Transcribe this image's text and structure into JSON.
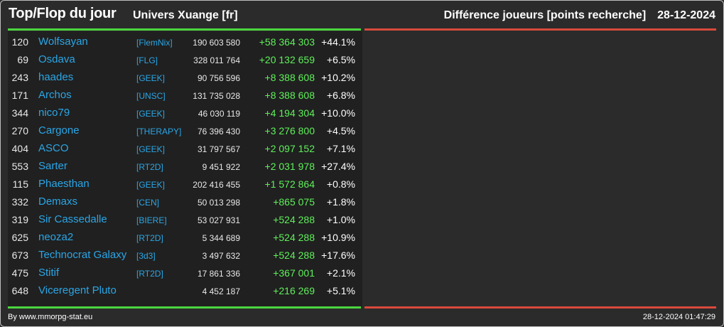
{
  "header": {
    "title": "Top/Flop du jour",
    "univers": "Univers Xuange [fr]",
    "metric": "Différence joueurs [points recherche]",
    "date": "28-12-2024"
  },
  "colors": {
    "top": "#4bd63f",
    "flop": "#d94a3c",
    "link": "#2aa6e6",
    "positive": "#5ff05a"
  },
  "top_rows": [
    {
      "rank": "120",
      "name": "Wolfsayan",
      "tag": "[FlemNix]",
      "points": "190 603 580",
      "diff": "+58 364 303",
      "pct": "+44.1%"
    },
    {
      "rank": "69",
      "name": "Osdava",
      "tag": "[FLG]",
      "points": "328 011 764",
      "diff": "+20 132 659",
      "pct": "+6.5%"
    },
    {
      "rank": "243",
      "name": "haades",
      "tag": "[GEEK]",
      "points": "90 756 596",
      "diff": "+8 388 608",
      "pct": "+10.2%"
    },
    {
      "rank": "171",
      "name": "Archos",
      "tag": "[UNSC]",
      "points": "131 735 028",
      "diff": "+8 388 608",
      "pct": "+6.8%"
    },
    {
      "rank": "344",
      "name": "nico79",
      "tag": "[GEEK]",
      "points": "46 030 119",
      "diff": "+4 194 304",
      "pct": "+10.0%"
    },
    {
      "rank": "270",
      "name": "Cargone",
      "tag": "[THERAPY]",
      "points": "76 396 430",
      "diff": "+3 276 800",
      "pct": "+4.5%"
    },
    {
      "rank": "404",
      "name": "ASCO",
      "tag": "[GEEK]",
      "points": "31 797 567",
      "diff": "+2 097 152",
      "pct": "+7.1%"
    },
    {
      "rank": "553",
      "name": "Sarter",
      "tag": "[RT2D]",
      "points": "9 451 922",
      "diff": "+2 031 978",
      "pct": "+27.4%"
    },
    {
      "rank": "115",
      "name": "Phaesthan",
      "tag": "[GEEK]",
      "points": "202 416 455",
      "diff": "+1 572 864",
      "pct": "+0.8%"
    },
    {
      "rank": "332",
      "name": "Demaxs",
      "tag": "[CEN]",
      "points": "50 013 298",
      "diff": "+865 075",
      "pct": "+1.8%"
    },
    {
      "rank": "319",
      "name": "Sir Cassedalle",
      "tag": "[BIERE]",
      "points": "53 027 931",
      "diff": "+524 288",
      "pct": "+1.0%"
    },
    {
      "rank": "625",
      "name": "neoza2",
      "tag": "[RT2D]",
      "points": "5 344 689",
      "diff": "+524 288",
      "pct": "+10.9%"
    },
    {
      "rank": "673",
      "name": "Technocrat Galaxy",
      "tag": "[3d3]",
      "points": "3 497 632",
      "diff": "+524 288",
      "pct": "+17.6%"
    },
    {
      "rank": "475",
      "name": "Stitif",
      "tag": "[RT2D]",
      "points": "17 861 336",
      "diff": "+367 001",
      "pct": "+2.1%"
    },
    {
      "rank": "648",
      "name": "Viceregent Pluto",
      "tag": "",
      "points": "4 452 187",
      "diff": "+216 269",
      "pct": "+5.1%"
    }
  ],
  "footer": {
    "credit": "By www.mmorpg-stat.eu",
    "timestamp": "28-12-2024 01:47:29"
  }
}
